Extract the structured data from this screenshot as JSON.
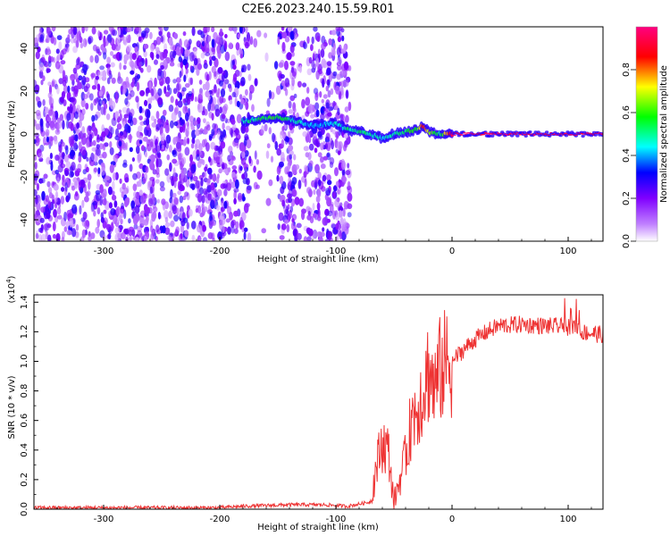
{
  "title": "C2E6.2023.240.15.59.R01",
  "chart_data": [
    {
      "type": "heatmap",
      "xlabel": "Height of straight line (km)",
      "ylabel": "Frequency (Hz)",
      "xlim": [
        -360,
        130
      ],
      "ylim": [
        -50,
        50
      ],
      "x_ticks": [
        -300,
        -200,
        -100,
        0,
        100
      ],
      "y_ticks": [
        -40,
        -20,
        0,
        20,
        40
      ],
      "colorbar": {
        "label": "Normalized spectral amplitude",
        "range": [
          0,
          1
        ],
        "ticks": [
          0.0,
          0.2,
          0.4,
          0.6,
          0.8
        ],
        "colormap": [
          "#ffffff",
          "#8000ff",
          "#0000ff",
          "#00ffff",
          "#00ff00",
          "#ffff00",
          "#ff0000",
          "#ff0080"
        ]
      },
      "noise_region": {
        "x": [
          -360,
          -88
        ],
        "amplitude": [
          0.05,
          0.3
        ]
      },
      "signal_ridge": {
        "x": [
          -180,
          -165,
          -150,
          -135,
          -120,
          -100,
          -90,
          -80,
          -70,
          -60,
          -50,
          -40,
          -30,
          -25,
          -20,
          -10,
          0,
          130
        ],
        "freq": [
          6,
          7,
          8,
          6,
          4,
          5,
          2,
          1,
          0,
          -2,
          0,
          1,
          2,
          4,
          1,
          0,
          0,
          0
        ],
        "amplitude": [
          0.45,
          0.55,
          0.6,
          0.5,
          0.4,
          0.45,
          0.5,
          0.55,
          0.5,
          0.45,
          0.5,
          0.55,
          0.6,
          0.85,
          0.7,
          0.5,
          0.95,
          0.95
        ]
      },
      "grid": false
    },
    {
      "type": "line",
      "xlabel": "Height of straight line (km)",
      "ylabel": "SNR (10 * v/v)",
      "y_multiplier_label": "(x10",
      "y_multiplier_exp": "4",
      "xlim": [
        -360,
        130
      ],
      "ylim": [
        0,
        1.45
      ],
      "x_ticks": [
        -300,
        -200,
        -100,
        0,
        100
      ],
      "y_ticks": [
        0.0,
        0.2,
        0.4,
        0.6,
        0.8,
        1.0,
        1.2,
        1.4
      ],
      "series": [
        {
          "color": "#ee3333",
          "x": [
            -360,
            -200,
            -180,
            -140,
            -110,
            -90,
            -70,
            -65,
            -60,
            -55,
            -50,
            -45,
            -40,
            -35,
            -30,
            -25,
            -20,
            -15,
            -10,
            -5,
            0,
            10,
            20,
            30,
            40,
            60,
            80,
            100,
            105,
            110,
            130
          ],
          "y": [
            0.01,
            0.01,
            0.02,
            0.03,
            0.03,
            0.02,
            0.05,
            0.3,
            0.45,
            0.4,
            0.05,
            0.2,
            0.35,
            0.6,
            0.7,
            0.8,
            0.95,
            0.8,
            0.95,
            0.98,
            1.0,
            1.08,
            1.15,
            1.2,
            1.24,
            1.25,
            1.24,
            1.23,
            1.25,
            1.2,
            1.18
          ]
        }
      ],
      "grid": false
    }
  ]
}
